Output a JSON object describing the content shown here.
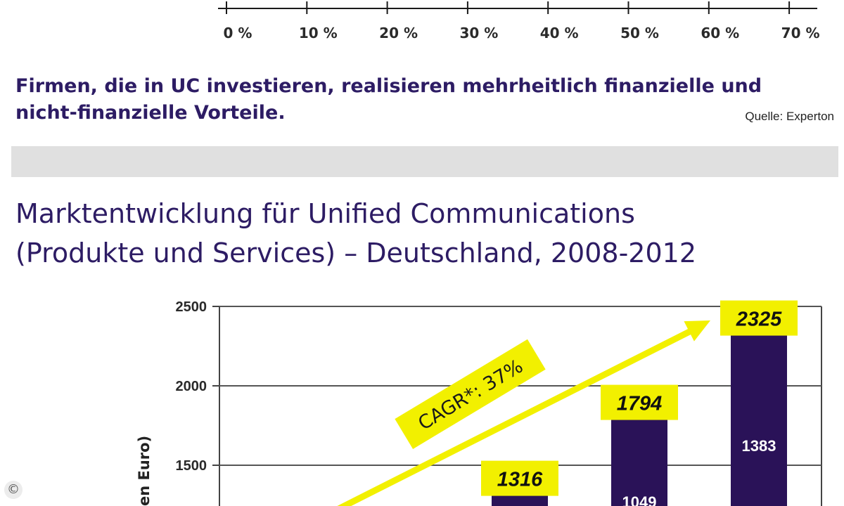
{
  "top_chart": {
    "tick_labels": [
      "0 %",
      "10 %",
      "20 %",
      "30 %",
      "40 %",
      "50 %",
      "60 %",
      "70 %"
    ]
  },
  "caption": {
    "line1": "Firmen, die in UC investieren, realisieren mehrheitlich finanzielle und",
    "line2": "nicht-finanzielle Vorteile."
  },
  "source": "Quelle: Experton",
  "title": {
    "line1": "Marktentwicklung für Unified Communications",
    "line2": "(Produkte und Services) – Deutschland, 2008-2012"
  },
  "copyright_symbol": "©",
  "chart_data": {
    "type": "bar",
    "ylabel": "en Euro)",
    "ylim": [
      0,
      2500
    ],
    "yticks": [
      1500,
      2000,
      2500
    ],
    "grid": true,
    "annotation": "CAGR*: 37%",
    "series": [
      {
        "name": "",
        "values": [
          1316,
          1794,
          2325
        ]
      },
      {
        "name": "",
        "values": [
          null,
          1049,
          1383
        ]
      }
    ],
    "colors": {
      "bar": "#2a1258",
      "highlight": "#f2f000",
      "arrow": "#f2f000"
    }
  }
}
